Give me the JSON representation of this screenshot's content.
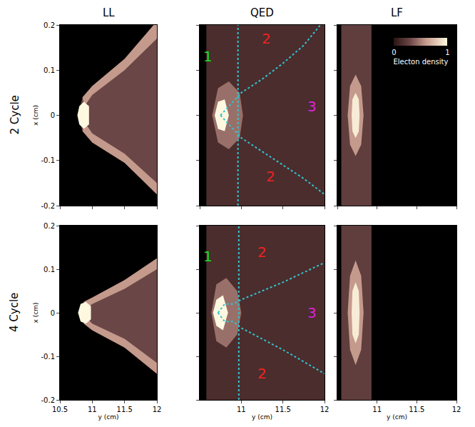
{
  "chart_data": [
    {
      "type": "scatter",
      "title": "LL",
      "row_title": "2 Cycle",
      "y_label": "x (cm)",
      "xlim": [
        10.5,
        12
      ],
      "ylim": [
        -0.2,
        0.2
      ],
      "xticks": [
        10.5,
        11,
        11.5,
        12
      ],
      "yticks": [
        -0.2,
        -0.1,
        0,
        0.1,
        0.2
      ],
      "tick_labels": "y",
      "series": [
        {
          "type": "area",
          "density": 0.3,
          "x": [
            10.78,
            10.85,
            11,
            11.5,
            11.95,
            12,
            12,
            11.5,
            11,
            10.85
          ],
          "y": [
            0,
            0.04,
            0.065,
            0.125,
            0.2,
            0.2,
            -0.175,
            -0.105,
            -0.06,
            -0.035
          ]
        },
        {
          "type": "area",
          "density": 0.6,
          "x": [
            10.85,
            11,
            11.5,
            11.95,
            12,
            12,
            11.5,
            11,
            10.88
          ],
          "y": [
            0.04,
            0.065,
            0.125,
            0.2,
            0.2,
            0.17,
            0.1,
            0.045,
            0.02
          ]
        },
        {
          "type": "area",
          "density": 0.6,
          "x": [
            10.85,
            11,
            11.5,
            12,
            12,
            11.5,
            11,
            10.88
          ],
          "y": [
            -0.035,
            -0.06,
            -0.105,
            -0.175,
            -0.15,
            -0.085,
            -0.04,
            -0.015
          ]
        },
        {
          "type": "area",
          "density": 1.0,
          "x": [
            10.77,
            10.8,
            10.87,
            10.95,
            10.95,
            10.87,
            10.8
          ],
          "y": [
            0,
            0.02,
            0.03,
            0.02,
            -0.02,
            -0.03,
            -0.02
          ]
        }
      ]
    },
    {
      "type": "scatter",
      "title": "QED",
      "xlim": [
        10.5,
        12
      ],
      "ylim": [
        -0.2,
        0.2
      ],
      "xticks": [
        10.5,
        11,
        11.5,
        12
      ],
      "yticks": [
        -0.2,
        -0.1,
        0,
        0.1,
        0.2
      ],
      "tick_labels": false,
      "series": [
        {
          "type": "area",
          "density": 0.15,
          "x": [
            10.58,
            12,
            12,
            10.58
          ],
          "y": [
            0.2,
            0.2,
            -0.2,
            -0.2
          ]
        },
        {
          "type": "area",
          "density": 0.45,
          "x": [
            10.65,
            10.72,
            10.85,
            10.98,
            11.02,
            10.98,
            10.85,
            10.72
          ],
          "y": [
            0,
            0.06,
            0.075,
            0.05,
            0,
            -0.05,
            -0.075,
            -0.06
          ]
        },
        {
          "type": "area",
          "density": 1.0,
          "x": [
            10.68,
            10.72,
            10.8,
            10.85,
            10.8,
            10.72
          ],
          "y": [
            0,
            0.03,
            0.035,
            0,
            -0.035,
            -0.03
          ]
        },
        {
          "type": "line",
          "color": "#33c3d0",
          "line_style": "dotted",
          "x": [
            10.96,
            10.96
          ],
          "y": [
            -0.2,
            0.2
          ]
        },
        {
          "type": "line",
          "color": "#33c3d0",
          "line_style": "dotted",
          "x": [
            10.75,
            10.85,
            11,
            11.25,
            11.5,
            11.75,
            11.95
          ],
          "y": [
            0,
            0.02,
            0.05,
            0.08,
            0.115,
            0.155,
            0.2
          ]
        },
        {
          "type": "line",
          "color": "#33c3d0",
          "line_style": "dotted",
          "x": [
            10.75,
            10.85,
            11,
            11.25,
            11.5,
            11.75,
            12
          ],
          "y": [
            0,
            -0.02,
            -0.05,
            -0.08,
            -0.11,
            -0.14,
            -0.175
          ]
        }
      ],
      "annotations": [
        {
          "text": "1",
          "x": 10.6,
          "y": 0.13,
          "color": "#22dd22"
        },
        {
          "text": "2",
          "x": 11.3,
          "y": 0.17,
          "color": "#ee2222"
        },
        {
          "text": "3",
          "x": 11.85,
          "y": 0.02,
          "color": "#dd22dd"
        },
        {
          "text": "2",
          "x": 11.35,
          "y": -0.135,
          "color": "#ee2222"
        }
      ]
    },
    {
      "type": "scatter",
      "title": "LF",
      "xlim": [
        10.5,
        12
      ],
      "ylim": [
        -0.2,
        0.2
      ],
      "xticks": [
        10.5,
        11,
        11.5,
        12
      ],
      "yticks": [
        -0.2,
        -0.1,
        0,
        0.1,
        0.2
      ],
      "tick_labels": false,
      "colorbar": {
        "title": "Electon density",
        "range": [
          0,
          1
        ],
        "ticks": [
          0,
          1
        ]
      },
      "series": [
        {
          "type": "area",
          "density": 0.25,
          "x": [
            10.55,
            10.93,
            10.93,
            10.55
          ],
          "y": [
            0.2,
            0.2,
            -0.2,
            -0.2
          ]
        },
        {
          "type": "area",
          "density": 0.6,
          "x": [
            10.73,
            10.8,
            10.83,
            10.8,
            10.73,
            10.66,
            10.63,
            10.66
          ],
          "y": [
            0.09,
            0.065,
            0,
            -0.065,
            -0.09,
            -0.065,
            0,
            0.065
          ]
        },
        {
          "type": "area",
          "density": 0.95,
          "x": [
            10.73,
            10.77,
            10.78,
            10.77,
            10.73,
            10.69,
            10.68,
            10.69
          ],
          "y": [
            0.05,
            0.035,
            0,
            -0.035,
            -0.05,
            -0.035,
            0,
            0.035
          ]
        }
      ]
    },
    {
      "type": "scatter",
      "row_title": "4 Cycle",
      "x_label": "y (cm)",
      "y_label": "x (cm)",
      "xlim": [
        10.5,
        12
      ],
      "ylim": [
        -0.2,
        0.2
      ],
      "xticks": [
        10.5,
        11,
        11.5,
        12
      ],
      "yticks": [
        -0.2,
        -0.1,
        0,
        0.1,
        0.2
      ],
      "series": [
        {
          "type": "area",
          "density": 0.3,
          "x": [
            10.8,
            10.87,
            11,
            11.5,
            12,
            12,
            11.5,
            11,
            10.87
          ],
          "y": [
            0,
            0.025,
            0.035,
            0.075,
            0.125,
            -0.14,
            -0.08,
            -0.04,
            -0.025
          ]
        },
        {
          "type": "area",
          "density": 0.6,
          "x": [
            10.87,
            11,
            11.5,
            12,
            12,
            11.5,
            11,
            10.9
          ],
          "y": [
            0.025,
            0.035,
            0.075,
            0.125,
            0.1,
            0.055,
            0.02,
            0.01
          ]
        },
        {
          "type": "area",
          "density": 0.6,
          "x": [
            10.87,
            11,
            11.5,
            12,
            12,
            11.5,
            11,
            10.9
          ],
          "y": [
            -0.025,
            -0.04,
            -0.08,
            -0.14,
            -0.115,
            -0.06,
            -0.025,
            -0.01
          ]
        },
        {
          "type": "area",
          "density": 1.0,
          "x": [
            10.78,
            10.82,
            10.9,
            10.98,
            10.98,
            10.9,
            10.82
          ],
          "y": [
            0,
            0.02,
            0.025,
            0.015,
            -0.015,
            -0.025,
            -0.02
          ]
        }
      ]
    },
    {
      "type": "scatter",
      "x_label": "y (cm)",
      "xlim": [
        10.5,
        12
      ],
      "ylim": [
        -0.2,
        0.2
      ],
      "xticks": [
        11,
        11.5,
        12
      ],
      "yticks": [
        -0.2,
        -0.1,
        0,
        0.1,
        0.2
      ],
      "tick_labels": "x",
      "series": [
        {
          "type": "area",
          "density": 0.15,
          "x": [
            10.58,
            12,
            12,
            10.58
          ],
          "y": [
            0.2,
            0.2,
            -0.2,
            -0.2
          ]
        },
        {
          "type": "area",
          "density": 0.45,
          "x": [
            10.64,
            10.7,
            10.82,
            10.95,
            11.0,
            10.95,
            10.82,
            10.7
          ],
          "y": [
            0,
            0.065,
            0.08,
            0.05,
            0,
            -0.05,
            -0.08,
            -0.065
          ]
        },
        {
          "type": "area",
          "density": 1.0,
          "x": [
            10.66,
            10.7,
            10.78,
            10.84,
            10.78,
            10.7
          ],
          "y": [
            0,
            0.03,
            0.04,
            0,
            -0.04,
            -0.03
          ]
        },
        {
          "type": "line",
          "color": "#33c3d0",
          "line_style": "dotted",
          "x": [
            10.97,
            10.97
          ],
          "y": [
            -0.2,
            0.2
          ]
        },
        {
          "type": "line",
          "color": "#33c3d0",
          "line_style": "dotted",
          "x": [
            10.72,
            10.8,
            10.9,
            11,
            11.5,
            12
          ],
          "y": [
            0,
            0.02,
            0.02,
            0.03,
            0.07,
            0.115
          ]
        },
        {
          "type": "line",
          "color": "#33c3d0",
          "line_style": "dotted",
          "x": [
            10.72,
            10.8,
            10.9,
            11,
            11.5,
            12
          ],
          "y": [
            0,
            -0.02,
            -0.02,
            -0.035,
            -0.085,
            -0.14
          ]
        }
      ],
      "annotations": [
        {
          "text": "1",
          "x": 10.6,
          "y": 0.13,
          "color": "#22dd22"
        },
        {
          "text": "2",
          "x": 11.25,
          "y": 0.14,
          "color": "#ee2222"
        },
        {
          "text": "3",
          "x": 11.85,
          "y": 0.0,
          "color": "#dd22dd"
        },
        {
          "text": "2",
          "x": 11.25,
          "y": -0.14,
          "color": "#ee2222"
        }
      ]
    },
    {
      "type": "scatter",
      "x_label": "y (cm)",
      "xlim": [
        10.5,
        12
      ],
      "ylim": [
        -0.2,
        0.2
      ],
      "xticks": [
        11,
        11.5,
        12
      ],
      "yticks": [
        -0.2,
        -0.1,
        0,
        0.1,
        0.2
      ],
      "tick_labels": "x",
      "series": [
        {
          "type": "area",
          "density": 0.25,
          "x": [
            10.55,
            10.93,
            10.93,
            10.55
          ],
          "y": [
            0.2,
            0.2,
            -0.2,
            -0.2
          ]
        },
        {
          "type": "area",
          "density": 0.6,
          "x": [
            10.73,
            10.8,
            10.83,
            10.8,
            10.73,
            10.66,
            10.63,
            10.66
          ],
          "y": [
            0.12,
            0.085,
            0,
            -0.085,
            -0.12,
            -0.085,
            0,
            0.085
          ]
        },
        {
          "type": "area",
          "density": 0.95,
          "x": [
            10.73,
            10.77,
            10.78,
            10.77,
            10.73,
            10.69,
            10.68,
            10.69
          ],
          "y": [
            0.07,
            0.05,
            0,
            -0.05,
            -0.07,
            -0.05,
            0,
            0.05
          ]
        }
      ]
    }
  ]
}
